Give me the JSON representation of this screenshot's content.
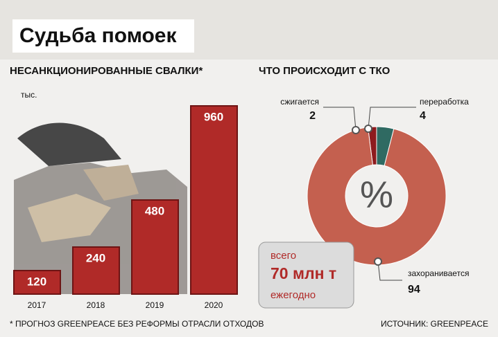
{
  "header": {
    "title": "Судьба помоек"
  },
  "chart_data": [
    {
      "type": "bar",
      "title": "НЕСАНКЦИОНИРОВАННЫЕ СВАЛКИ*",
      "unit": "тыс.",
      "categories": [
        "2017",
        "2018",
        "2019",
        "2020"
      ],
      "values": [
        120,
        240,
        480,
        960
      ],
      "color": "#b02a28"
    },
    {
      "type": "pie",
      "title": "ЧТО ПРОИСХОДИТ С ТКО",
      "center_label": "%",
      "categories": [
        "сжигается",
        "переработка",
        "захоранивается"
      ],
      "values": [
        2,
        4,
        94
      ],
      "colors": [
        "#8e1b1e",
        "#2f6a62",
        "#c4604f"
      ],
      "annotations": [
        "всего",
        "70 млн т",
        "ежегодно"
      ]
    }
  ],
  "footnote": "* ПРОГНОЗ GREENPEACE БЕЗ РЕФОРМЫ ОТРАСЛИ ОТХОДОВ",
  "source": "ИСТОЧНИК: GREENPEACE"
}
